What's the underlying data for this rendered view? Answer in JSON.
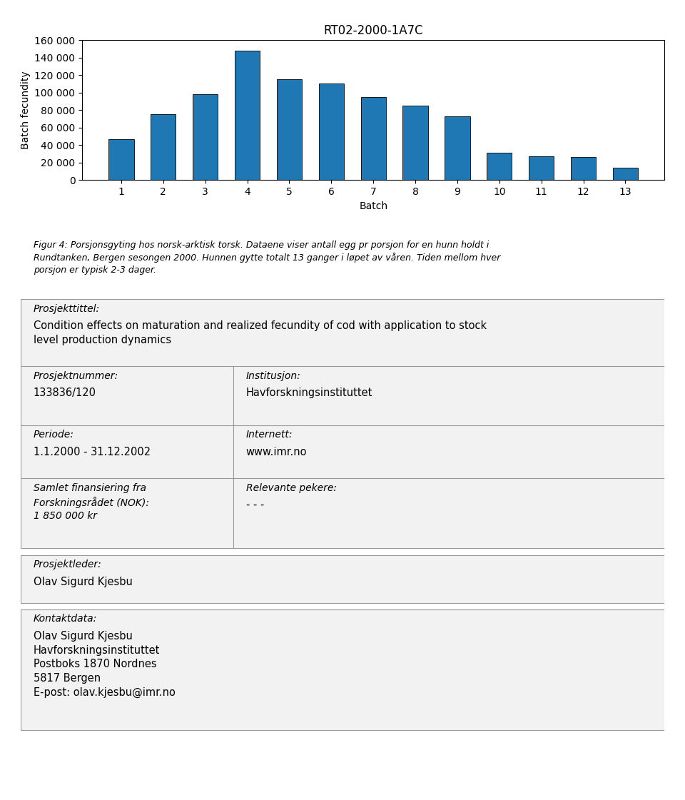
{
  "chart_data": {
    "type": "bar",
    "title": "RT02-2000-1A7C",
    "categories": [
      "1",
      "2",
      "3",
      "4",
      "5",
      "6",
      "7",
      "8",
      "9",
      "10",
      "11",
      "12",
      "13"
    ],
    "values": [
      47000,
      75000,
      98000,
      148000,
      115000,
      110000,
      95000,
      85000,
      73000,
      31000,
      27000,
      26000,
      14000
    ],
    "xlabel": "Batch",
    "ylabel": "Batch fecundity",
    "ylim": [
      0,
      160000
    ],
    "yticks": [
      0,
      {
        "value": 20000,
        "label": "20 000"
      },
      {
        "value": 40000,
        "label": "40 000"
      },
      {
        "value": 60000,
        "label": "60 000"
      },
      {
        "value": 80000,
        "label": "80 000"
      },
      {
        "value": 100000,
        "label": "100 000"
      },
      {
        "value": 120000,
        "label": "120 000"
      },
      {
        "value": 140000,
        "label": "140 000"
      },
      {
        "value": 160000,
        "label": "160 000"
      }
    ],
    "grid": false
  },
  "caption": "Figur 4: Porsjonsgyting hos norsk-arktisk torsk. Dataene viser antall egg pr porsjon for en hunn holdt i\nRundtanken, Bergen sesongen 2000. Hunnen gytte totalt 13 ganger i løpet av våren. Tiden mellom hver\nporsjon er typisk 2-3 dager.",
  "annotations": [
    {
      "label": "Prosjekttittel:",
      "value": "Condition effects on maturation and realized fecundity of cod with application to stock\nlevel production dynamics"
    },
    {
      "label": "Prosjektnummer:",
      "value": "133836/120"
    },
    {
      "label": "Institusjon:",
      "value": "Havforskningsinstituttet"
    },
    {
      "label": "Periode:",
      "value": "1.1.2000 - 31.12.2002"
    },
    {
      "label": "Internett:",
      "value": "www.imr.no"
    },
    {
      "label": "Samlet finansiering fra\nForskningsrådet (NOK):\n1 850 000 kr"
    },
    {
      "label": "Relevante pekere:",
      "value": "- - -"
    },
    {
      "label": "Prosjektleder:",
      "value": "Olav Sigurd Kjesbu"
    },
    {
      "label": "Kontaktdata:",
      "value": "Olav Sigurd Kjesbu\nHavforskningsinstituttet\nPostboks 1870 Nordnes\n5817 Bergen\nE-post: olav.kjesbu@imr.no"
    }
  ]
}
